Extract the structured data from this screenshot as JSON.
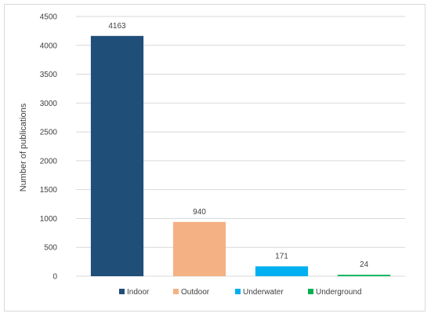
{
  "chart_data": {
    "type": "bar",
    "title": "",
    "xlabel": "",
    "ylabel": "Number of publications",
    "ylim": [
      0,
      4500
    ],
    "yticks": [
      0,
      500,
      1000,
      1500,
      2000,
      2500,
      3000,
      3500,
      4000,
      4500
    ],
    "grid": true,
    "legend_position": "bottom",
    "categories": [
      "Indoor",
      "Outdoor",
      "Underwater",
      "Underground"
    ],
    "values": [
      4163,
      940,
      171,
      24
    ],
    "data_labels": [
      "4163",
      "940",
      "171",
      "24"
    ],
    "colors": [
      "#1f4e79",
      "#f4b183",
      "#00b0f0",
      "#00b050"
    ]
  }
}
